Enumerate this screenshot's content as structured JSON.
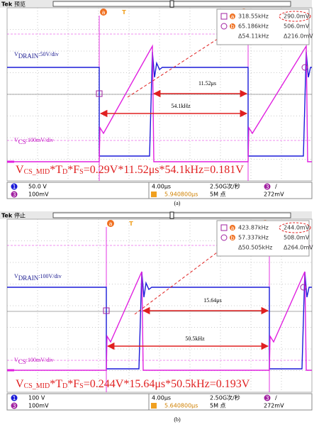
{
  "panels": [
    {
      "header": {
        "brand": "Tek",
        "state": "预览"
      },
      "markers": {
        "a": "a",
        "t": "T",
        "b": "b"
      },
      "readout": {
        "row1": [
          "318.55kHz",
          "290.0mV"
        ],
        "row2": [
          "65.186kHz",
          "506.0mV"
        ],
        "row3": [
          "Δ54.11kHz",
          "Δ216.0mV"
        ]
      },
      "drain_label": {
        "symbol": "V",
        "sub": "DRAIN",
        "text": ":50V/div"
      },
      "arrows": {
        "time": "11.52μs",
        "freq": "54.1kHz"
      },
      "cs_label": {
        "symbol": "V",
        "sub": "CS",
        "text": ":100mV/div"
      },
      "formula": {
        "v": "V",
        "sub1": "CS_MID",
        "t": "*T",
        "sub2": "D",
        "f": "*F",
        "sub3": "S",
        "rest": "=0.29V*11.52μs*54.1kHz=0.181V"
      },
      "status": {
        "ch1": "1",
        "ch1_scale": "50.0 V",
        "ch3": "3",
        "ch3_scale": "100mV",
        "timebase": "4.00μs",
        "trigger_pos": "5.940800μs",
        "rate": "2.50G次/秒",
        "points": "5M 点",
        "trig_ch": "3",
        "trig_slope": "/",
        "trig_level": "272mV"
      },
      "caption": "(a)"
    },
    {
      "header": {
        "brand": "Tek",
        "state": "停止"
      },
      "markers": {
        "a": "a",
        "t": "T",
        "b": "b"
      },
      "readout": {
        "row1": [
          "423.87kHz",
          "244.0mV"
        ],
        "row2": [
          "57.337kHz",
          "508.0mV"
        ],
        "row3": [
          "Δ50.505kHz",
          "Δ264.0mV"
        ]
      },
      "drain_label": {
        "symbol": "V",
        "sub": "DRAIN",
        "text": ":100V/div"
      },
      "arrows": {
        "time": "15.64μs",
        "freq": "50.5kHz"
      },
      "cs_label": {
        "symbol": "V",
        "sub": "CS",
        "text": ":100mV/div"
      },
      "formula": {
        "v": "V",
        "sub1": "CS_MID",
        "t": "*T",
        "sub2": "D",
        "f": "*F",
        "sub3": "S",
        "rest": "=0.244V*15.64μs*50.5kHz=0.193V"
      },
      "status": {
        "ch1": "1",
        "ch1_scale": "100 V",
        "ch3": "3",
        "ch3_scale": "100mV",
        "timebase": "4.00μs",
        "trigger_pos": "5.640800μs",
        "rate": "2.50G次/秒",
        "points": "5M 点",
        "trig_ch": "3",
        "trig_slope": "/",
        "trig_level": "272mV"
      },
      "caption": "(b)"
    }
  ]
}
